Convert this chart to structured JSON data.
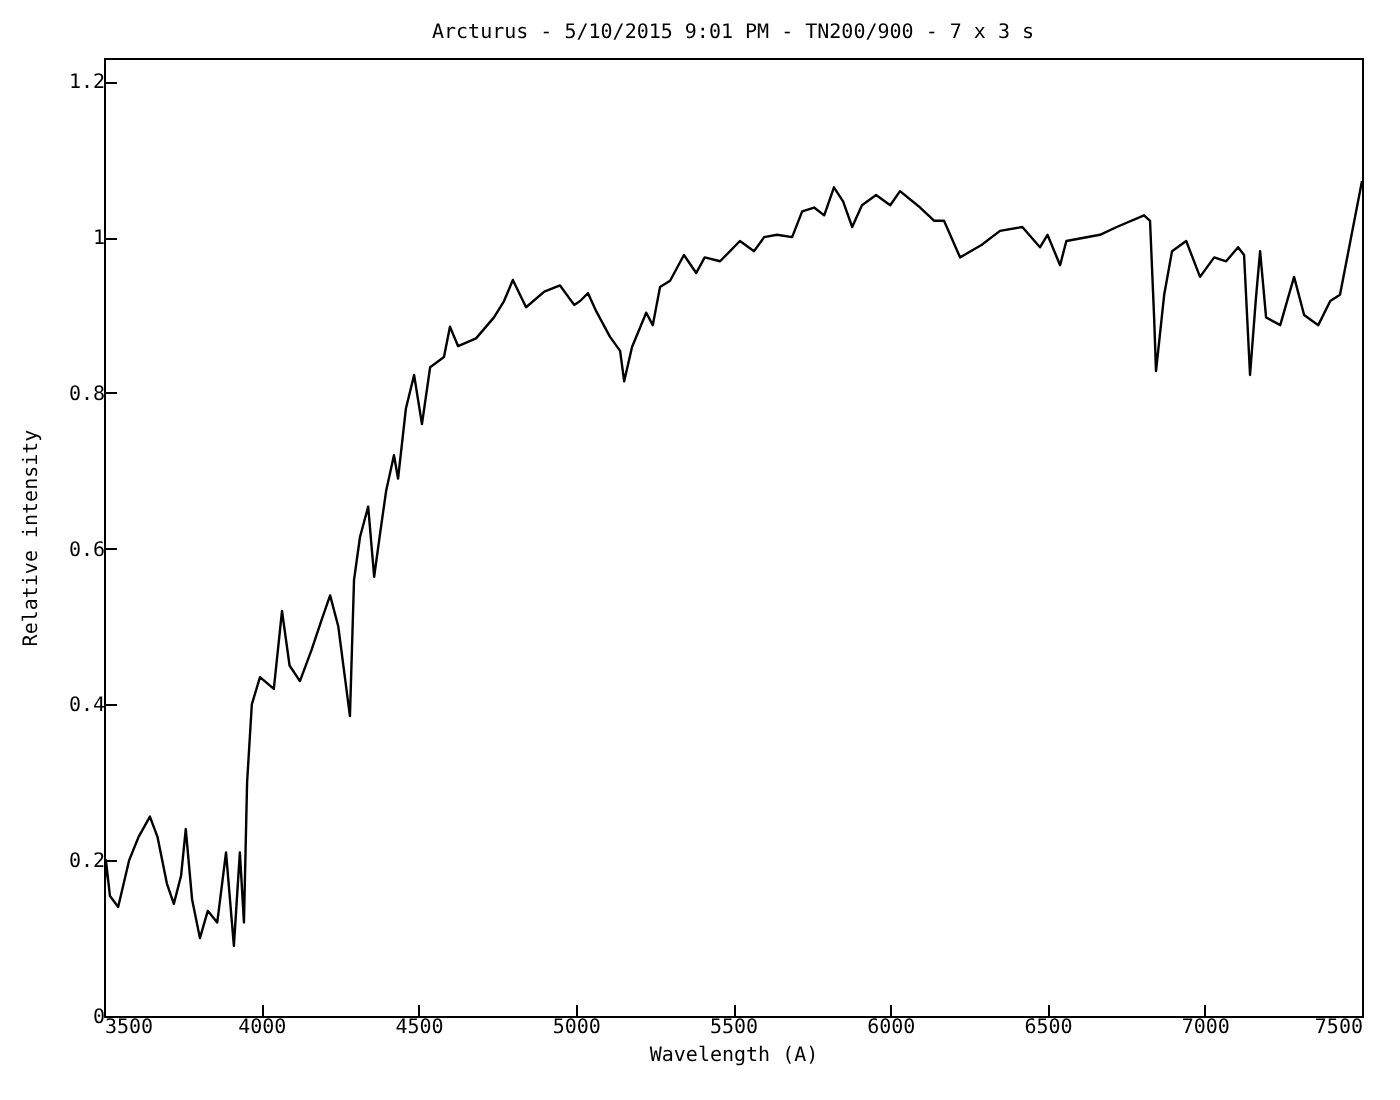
{
  "chart_data": {
    "type": "line",
    "title": "Arcturus - 5/10/2015 9:01 PM - TN200/900 - 7 x 3 s",
    "xlabel": "Wavelength (A)",
    "ylabel": "Relative intensity",
    "xlim": [
      3500,
      7500
    ],
    "xticks": [
      3500,
      4000,
      4500,
      5000,
      5500,
      6000,
      6500,
      7000,
      7500
    ],
    "ylim": [
      0,
      1.23
    ],
    "yticks": [
      0,
      0.2,
      0.4,
      0.6,
      0.8,
      1,
      1.2
    ],
    "grid": false,
    "marker": "none",
    "line_style": "solid",
    "series": [
      {
        "color": "#000000",
        "x": [
          3500,
          3506,
          3519,
          3545,
          3580,
          3610,
          3646,
          3670,
          3700,
          3722,
          3745,
          3760,
          3780,
          3805,
          3830,
          3860,
          3888,
          3913,
          3932,
          3945,
          3955,
          3970,
          3996,
          4040,
          4066,
          4090,
          4123,
          4160,
          4193,
          4219,
          4245,
          4282,
          4295,
          4314,
          4340,
          4359,
          4378,
          4397,
          4422,
          4435,
          4460,
          4486,
          4511,
          4537,
          4581,
          4600,
          4626,
          4683,
          4740,
          4772,
          4800,
          4842,
          4900,
          4950,
          4995,
          5014,
          5039,
          5065,
          5109,
          5141,
          5154,
          5179,
          5224,
          5245,
          5268,
          5300,
          5344,
          5383,
          5410,
          5459,
          5522,
          5567,
          5599,
          5640,
          5688,
          5720,
          5758,
          5790,
          5821,
          5850,
          5879,
          5910,
          5955,
          6000,
          6031,
          6095,
          6140,
          6171,
          6222,
          6290,
          6349,
          6420,
          6476,
          6500,
          6540,
          6560,
          6667,
          6720,
          6807,
          6826,
          6839,
          6845,
          6871,
          6896,
          6941,
          6985,
          7030,
          7068,
          7106,
          7125,
          7144,
          7163,
          7176,
          7195,
          7240,
          7284,
          7316,
          7361,
          7399,
          7430,
          7500
        ],
        "values": [
          0.15,
          0.2,
          0.154,
          0.14,
          0.2,
          0.23,
          0.256,
          0.23,
          0.17,
          0.144,
          0.18,
          0.24,
          0.15,
          0.1,
          0.135,
          0.12,
          0.21,
          0.09,
          0.21,
          0.12,
          0.3,
          0.4,
          0.435,
          0.42,
          0.52,
          0.45,
          0.43,
          0.47,
          0.51,
          0.54,
          0.5,
          0.385,
          0.56,
          0.615,
          0.654,
          0.564,
          0.62,
          0.674,
          0.72,
          0.69,
          0.78,
          0.823,
          0.76,
          0.833,
          0.846,
          0.885,
          0.86,
          0.87,
          0.897,
          0.918,
          0.945,
          0.91,
          0.93,
          0.938,
          0.913,
          0.918,
          0.928,
          0.905,
          0.872,
          0.854,
          0.815,
          0.859,
          0.903,
          0.887,
          0.936,
          0.944,
          0.977,
          0.954,
          0.974,
          0.969,
          0.995,
          0.982,
          1.0,
          1.003,
          1.0,
          1.033,
          1.038,
          1.028,
          1.064,
          1.046,
          1.013,
          1.041,
          1.054,
          1.041,
          1.059,
          1.038,
          1.021,
          1.021,
          0.974,
          0.99,
          1.008,
          1.013,
          0.987,
          1.003,
          0.964,
          0.995,
          1.003,
          1.013,
          1.028,
          1.021,
          0.897,
          0.828,
          0.926,
          0.982,
          0.995,
          0.949,
          0.974,
          0.969,
          0.987,
          0.977,
          0.823,
          0.923,
          0.982,
          0.897,
          0.887,
          0.949,
          0.9,
          0.887,
          0.918,
          0.926,
          1.072
        ]
      }
    ]
  }
}
